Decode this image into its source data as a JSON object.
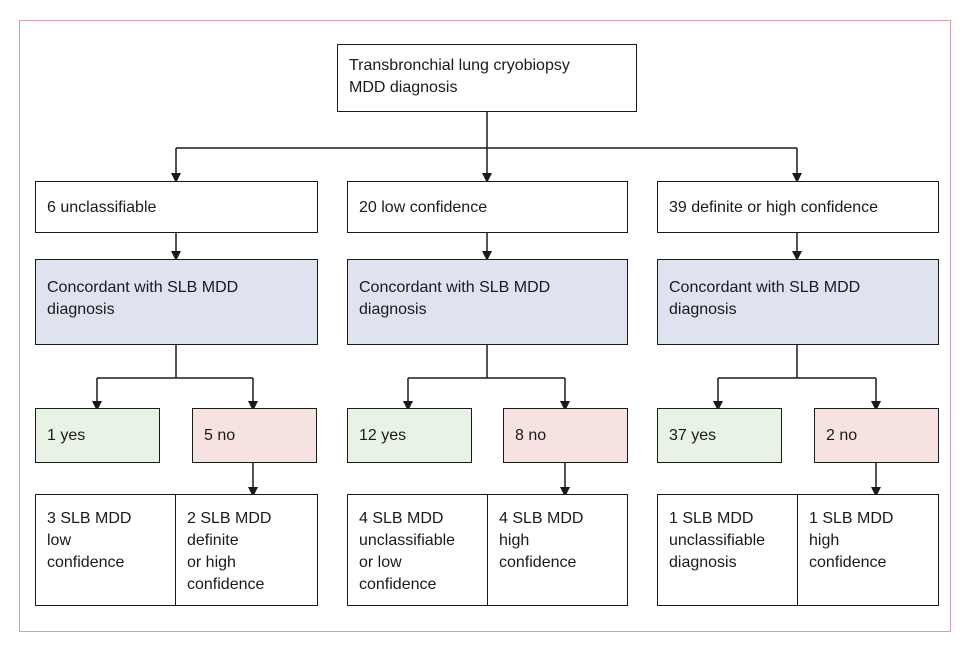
{
  "root": "Transbronchial lung cryobiopsy\nMDD diagnosis",
  "branches": [
    {
      "category": "6 unclassifiable",
      "concordance": "Concordant with SLB MDD\ndiagnosis",
      "yes": "1 yes",
      "no": "5 no",
      "yes_detail": "3 SLB MDD\n  low\n  confidence",
      "no_detail": "2 SLB MDD\n  definite\n  or high\n  confidence"
    },
    {
      "category": "20 low confidence",
      "concordance": "Concordant with SLB MDD\ndiagnosis",
      "yes": "12 yes",
      "no": "8 no",
      "yes_detail": "4 SLB MDD\n  unclassifiable\n  or low\n  confidence",
      "no_detail": "4 SLB MDD\n  high\n  confidence"
    },
    {
      "category": "39 definite or high confidence",
      "concordance": "Concordant with SLB MDD\ndiagnosis",
      "yes": "37 yes",
      "no": "2 no",
      "yes_detail": "1 SLB MDD\n  unclassifiable\n  diagnosis",
      "no_detail": "1 SLB MDD\n  high\n  confidence"
    }
  ],
  "colors": {
    "frame_border": "#d9a0a3",
    "concordance_fill": "#dfe3ef",
    "yes_fill": "#e9f3e5",
    "no_fill": "#f5e2e1",
    "line": "#1a1a1a"
  }
}
